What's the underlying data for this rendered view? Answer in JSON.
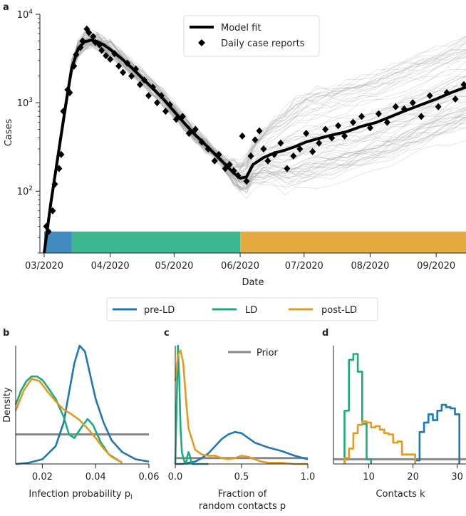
{
  "colors": {
    "pre_ld": "#1f77b4",
    "ld": "#1aab7e",
    "post_ld": "#e19c1f",
    "model": "#000000",
    "reports": "#000000",
    "sim": "#9a9a9a",
    "prior": "#888888"
  },
  "panels": {
    "a": "a",
    "b": "b",
    "c": "c",
    "d": "d"
  },
  "legend_top": {
    "model_fit": "Model fit",
    "daily_reports": "Daily case reports"
  },
  "legend_mid": {
    "pre_ld": "pre-LD",
    "ld": "LD",
    "post_ld": "post-LD"
  },
  "legend_prior": "Prior",
  "chart_data": [
    {
      "type": "line",
      "panel": "a",
      "xlabel": "Date",
      "ylabel": "Cases",
      "yscale": "log",
      "ylim": [
        20,
        10000
      ],
      "xlim": [
        "2020-02-28",
        "2020-09-15"
      ],
      "x_ticks": [
        "03/2020",
        "04/2020",
        "05/2020",
        "06/2020",
        "07/2020",
        "08/2020",
        "09/2020"
      ],
      "y_ticks": [
        {
          "value": 100,
          "base": "10",
          "exp": "2"
        },
        {
          "value": 1000,
          "base": "10",
          "exp": "3"
        },
        {
          "value": 10000,
          "base": "10",
          "exp": "4"
        }
      ],
      "phases": [
        {
          "name": "pre-LD",
          "start": "2020-03-01",
          "end": "2020-03-14"
        },
        {
          "name": "LD",
          "start": "2020-03-14",
          "end": "2020-06-01"
        },
        {
          "name": "post-LD",
          "start": "2020-06-01",
          "end": "2020-09-15"
        }
      ],
      "series": [
        {
          "name": "Model fit",
          "x": [
            "2020-03-01",
            "2020-03-04",
            "2020-03-08",
            "2020-03-11",
            "2020-03-14",
            "2020-03-17",
            "2020-03-20",
            "2020-03-23",
            "2020-03-26",
            "2020-03-29",
            "2020-04-01",
            "2020-04-06",
            "2020-04-11",
            "2020-04-16",
            "2020-04-21",
            "2020-04-26",
            "2020-05-01",
            "2020-05-06",
            "2020-05-11",
            "2020-05-16",
            "2020-05-21",
            "2020-05-26",
            "2020-05-29",
            "2020-06-01",
            "2020-06-04",
            "2020-06-07",
            "2020-06-12",
            "2020-06-17",
            "2020-06-22",
            "2020-06-27",
            "2020-07-02",
            "2020-07-07",
            "2020-07-14",
            "2020-07-21",
            "2020-07-28",
            "2020-08-04",
            "2020-08-11",
            "2020-08-18",
            "2020-08-25",
            "2020-09-01",
            "2020-09-08",
            "2020-09-15"
          ],
          "y": [
            20,
            70,
            300,
            900,
            2500,
            4100,
            4900,
            5100,
            4900,
            4500,
            4000,
            3200,
            2500,
            1900,
            1450,
            1100,
            800,
            580,
            430,
            330,
            250,
            190,
            160,
            140,
            145,
            200,
            240,
            270,
            290,
            320,
            360,
            390,
            430,
            470,
            540,
            600,
            700,
            820,
            950,
            1100,
            1300,
            1500
          ]
        },
        {
          "name": "Daily case reports",
          "x": [
            "2020-03-02",
            "2020-03-03",
            "2020-03-05",
            "2020-03-06",
            "2020-03-08",
            "2020-03-09",
            "2020-03-10",
            "2020-03-12",
            "2020-03-13",
            "2020-03-15",
            "2020-03-16",
            "2020-03-18",
            "2020-03-19",
            "2020-03-21",
            "2020-03-22",
            "2020-03-24",
            "2020-03-25",
            "2020-03-27",
            "2020-03-28",
            "2020-03-30",
            "2020-04-01",
            "2020-04-03",
            "2020-04-05",
            "2020-04-07",
            "2020-04-09",
            "2020-04-11",
            "2020-04-13",
            "2020-04-15",
            "2020-04-17",
            "2020-04-19",
            "2020-04-21",
            "2020-04-23",
            "2020-04-25",
            "2020-04-27",
            "2020-04-29",
            "2020-05-02",
            "2020-05-05",
            "2020-05-08",
            "2020-05-11",
            "2020-05-14",
            "2020-05-17",
            "2020-05-20",
            "2020-05-22",
            "2020-05-25",
            "2020-05-27",
            "2020-05-29",
            "2020-05-31",
            "2020-06-02",
            "2020-06-04",
            "2020-06-06",
            "2020-06-08",
            "2020-06-10",
            "2020-06-12",
            "2020-06-14",
            "2020-06-17",
            "2020-06-20",
            "2020-06-23",
            "2020-06-26",
            "2020-06-29",
            "2020-07-02",
            "2020-07-05",
            "2020-07-08",
            "2020-07-11",
            "2020-07-14",
            "2020-07-17",
            "2020-07-20",
            "2020-07-24",
            "2020-07-28",
            "2020-08-01",
            "2020-08-05",
            "2020-08-09",
            "2020-08-13",
            "2020-08-17",
            "2020-08-21",
            "2020-08-25",
            "2020-08-29",
            "2020-09-02",
            "2020-09-06",
            "2020-09-10",
            "2020-09-14"
          ],
          "y": [
            40,
            35,
            60,
            120,
            180,
            260,
            800,
            1400,
            1300,
            2600,
            3500,
            4200,
            5000,
            6800,
            6200,
            5600,
            4800,
            4500,
            3900,
            3400,
            3100,
            3600,
            2600,
            2200,
            2800,
            2000,
            2400,
            1600,
            1800,
            1200,
            1500,
            1000,
            1200,
            800,
            950,
            650,
            700,
            450,
            500,
            360,
            300,
            220,
            260,
            180,
            200,
            170,
            150,
            420,
            130,
            250,
            380,
            480,
            300,
            220,
            260,
            350,
            180,
            250,
            300,
            450,
            280,
            350,
            500,
            400,
            550,
            420,
            600,
            700,
            520,
            750,
            600,
            900,
            850,
            1000,
            700,
            1200,
            900,
            1300,
            1100,
            1600
          ]
        }
      ]
    },
    {
      "type": "line",
      "panel": "b",
      "xlabel": "Infection probability p",
      "xlabel_sub": "I",
      "ylabel": "Density",
      "xlim": [
        0.01,
        0.06
      ],
      "ylim": [
        0,
        1
      ],
      "x_ticks": [
        "0.02",
        "0.04",
        "0.06"
      ],
      "series": [
        {
          "name": "pre-LD",
          "x": [
            0.01,
            0.015,
            0.02,
            0.025,
            0.028,
            0.03,
            0.032,
            0.034,
            0.036,
            0.038,
            0.04,
            0.043,
            0.046,
            0.05,
            0.055,
            0.06
          ],
          "y": [
            0.0,
            0.01,
            0.04,
            0.15,
            0.35,
            0.6,
            0.85,
            1.0,
            0.95,
            0.75,
            0.55,
            0.35,
            0.2,
            0.1,
            0.04,
            0.02
          ]
        },
        {
          "name": "LD",
          "x": [
            0.01,
            0.012,
            0.014,
            0.016,
            0.018,
            0.02,
            0.022,
            0.025,
            0.028,
            0.03,
            0.032,
            0.035,
            0.037,
            0.039,
            0.042,
            0.045,
            0.05
          ],
          "y": [
            0.5,
            0.62,
            0.7,
            0.74,
            0.74,
            0.71,
            0.65,
            0.55,
            0.4,
            0.25,
            0.22,
            0.32,
            0.38,
            0.33,
            0.18,
            0.08,
            0.01
          ]
        },
        {
          "name": "post-LD",
          "x": [
            0.01,
            0.013,
            0.016,
            0.019,
            0.022,
            0.025,
            0.028,
            0.031,
            0.034,
            0.037,
            0.04,
            0.043,
            0.046,
            0.05
          ],
          "y": [
            0.45,
            0.62,
            0.72,
            0.7,
            0.61,
            0.53,
            0.46,
            0.42,
            0.37,
            0.3,
            0.22,
            0.13,
            0.06,
            0.01
          ]
        },
        {
          "name": "Prior",
          "x": [
            0.01,
            0.06
          ],
          "y": [
            0.25,
            0.25
          ]
        }
      ]
    },
    {
      "type": "line",
      "panel": "c",
      "xlabel": "Fraction of",
      "xlabel_line2": "random contacts p",
      "xlim": [
        0,
        1
      ],
      "ylim": [
        0,
        1
      ],
      "x_ticks": [
        "0.0",
        "0.5",
        "1.0"
      ],
      "legend": [
        "Prior"
      ],
      "series": [
        {
          "name": "pre-LD",
          "x": [
            0.0,
            0.05,
            0.1,
            0.15,
            0.2,
            0.25,
            0.3,
            0.35,
            0.4,
            0.45,
            0.5,
            0.55,
            0.6,
            0.7,
            0.8,
            0.9,
            1.0
          ],
          "y": [
            0.0,
            0.0,
            0.01,
            0.02,
            0.05,
            0.09,
            0.15,
            0.21,
            0.25,
            0.27,
            0.26,
            0.22,
            0.18,
            0.14,
            0.11,
            0.07,
            0.04
          ]
        },
        {
          "name": "LD",
          "x": [
            0.0,
            0.01,
            0.02,
            0.03,
            0.04,
            0.05,
            0.06,
            0.07,
            0.08,
            0.09,
            0.1,
            0.11,
            0.12,
            0.13,
            0.15,
            0.2,
            0.25
          ],
          "y": [
            0.0,
            0.5,
            1.0,
            0.7,
            0.3,
            0.1,
            0.05,
            0.02,
            0.0,
            0.06,
            0.1,
            0.07,
            0.02,
            0.0,
            0.0,
            0.0,
            0.0
          ]
        },
        {
          "name": "post-LD",
          "x": [
            0.0,
            0.02,
            0.04,
            0.06,
            0.08,
            0.1,
            0.15,
            0.2,
            0.25,
            0.3,
            0.35,
            0.4,
            0.45,
            0.5,
            0.55,
            0.6,
            0.65,
            0.7,
            0.8,
            0.9,
            1.0
          ],
          "y": [
            0.7,
            0.92,
            0.96,
            0.85,
            0.55,
            0.3,
            0.12,
            0.08,
            0.07,
            0.07,
            0.05,
            0.04,
            0.05,
            0.07,
            0.06,
            0.04,
            0.02,
            0.01,
            0.01,
            0.0,
            0.0
          ]
        },
        {
          "name": "Prior",
          "x": [
            0,
            1
          ],
          "y": [
            0.05,
            0.05
          ]
        }
      ]
    },
    {
      "type": "line",
      "panel": "d",
      "xlabel": "Contacts k",
      "xlim": [
        2,
        32
      ],
      "ylim": [
        0,
        1
      ],
      "x_ticks": [
        {
          "value": 10,
          "label": "10"
        },
        {
          "value": 20,
          "label": "20"
        },
        {
          "value": 30,
          "label": "30"
        }
      ],
      "series": [
        {
          "name": "LD",
          "x": [
            5,
            6,
            7,
            8,
            9,
            10
          ],
          "y": [
            0.45,
            0.88,
            0.93,
            0.78,
            0.34,
            0.04
          ]
        },
        {
          "name": "post-LD",
          "x": [
            5,
            6,
            7,
            8,
            9,
            10,
            11,
            12,
            13,
            14,
            15,
            16,
            17,
            18,
            19,
            20
          ],
          "y": [
            0.05,
            0.13,
            0.26,
            0.33,
            0.36,
            0.35,
            0.31,
            0.32,
            0.29,
            0.26,
            0.25,
            0.18,
            0.19,
            0.08,
            0.08,
            0.08
          ]
        },
        {
          "name": "pre-LD",
          "x": [
            21,
            22,
            23,
            24,
            25,
            26,
            27,
            28,
            29,
            30
          ],
          "y": [
            0.03,
            0.27,
            0.35,
            0.42,
            0.37,
            0.45,
            0.5,
            0.48,
            0.47,
            0.42
          ]
        },
        {
          "name": "Prior",
          "x": [
            2,
            32
          ],
          "y": [
            0.04,
            0.04
          ]
        }
      ]
    }
  ]
}
